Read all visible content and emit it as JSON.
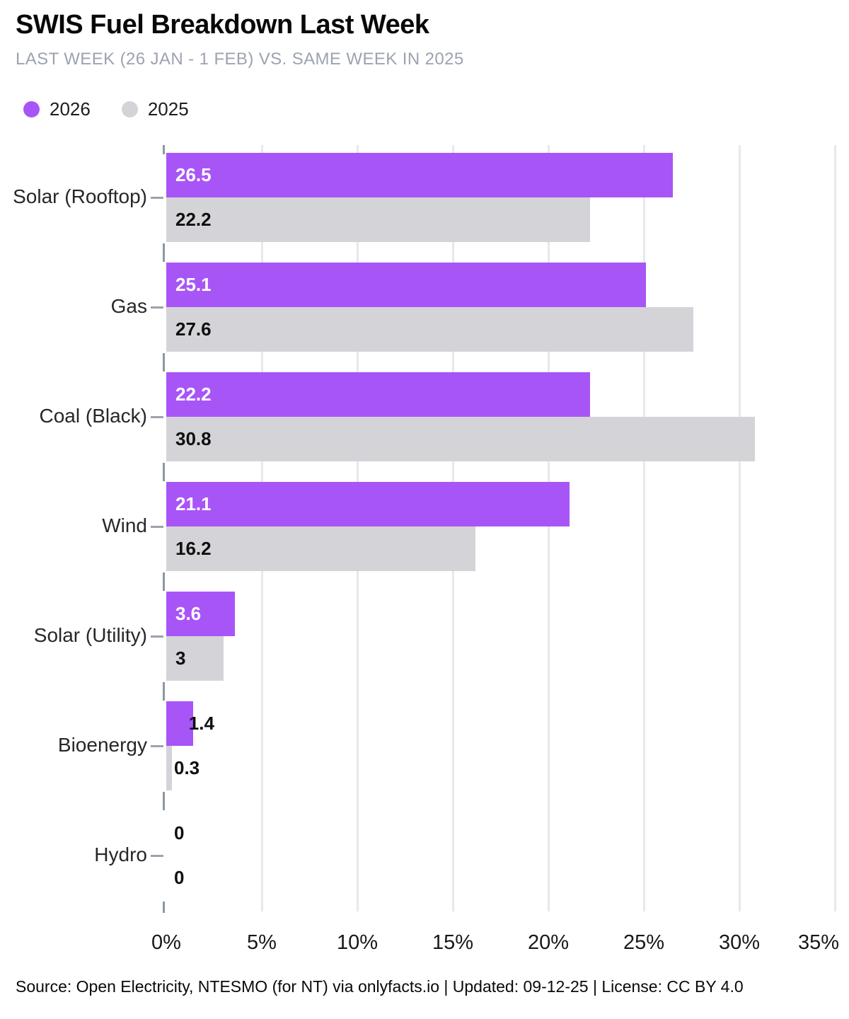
{
  "header": {
    "title": "SWIS Fuel Breakdown Last Week",
    "subtitle": "LAST WEEK (26 JAN - 1 FEB) VS. SAME WEEK IN 2025"
  },
  "legend": [
    {
      "label": "2026",
      "color": "#a855f7"
    },
    {
      "label": "2025",
      "color": "#d4d4d8"
    }
  ],
  "chart_data": {
    "type": "bar",
    "orientation": "horizontal",
    "title": "SWIS Fuel Breakdown Last Week",
    "subtitle": "LAST WEEK (26 JAN - 1 FEB) VS. SAME WEEK IN 2025",
    "categories": [
      "Solar (Rooftop)",
      "Gas",
      "Coal (Black)",
      "Wind",
      "Solar (Utility)",
      "Bioenergy",
      "Hydro"
    ],
    "series": [
      {
        "name": "2026",
        "color": "#a855f7",
        "values": [
          26.5,
          25.1,
          22.2,
          21.1,
          3.6,
          1.4,
          0
        ]
      },
      {
        "name": "2025",
        "color": "#d4d4d8",
        "values": [
          22.2,
          27.6,
          30.8,
          16.2,
          3,
          0.3,
          0
        ]
      }
    ],
    "xlim": [
      0,
      35
    ],
    "x_tick_step": 5,
    "x_tick_labels": [
      "0%",
      "5%",
      "10%",
      "15%",
      "20%",
      "25%",
      "30%",
      "35%"
    ],
    "grid": true,
    "legend_position": "top-left",
    "value_labels": true
  },
  "colors": {
    "accent": "#a855f7",
    "muted_bar": "#d4d4d8",
    "grid": "#e8e8eb",
    "axis_tick": "#8b98a5",
    "subtitle": "#9ca3af",
    "value_on_accent": "#ffffff",
    "value_on_muted": "#0f0f10"
  },
  "footer": {
    "source": "Source: Open Electricity, NTESMO (for NT) via onlyfacts.io | Updated: 09-12-25 | License: CC BY 4.0"
  }
}
